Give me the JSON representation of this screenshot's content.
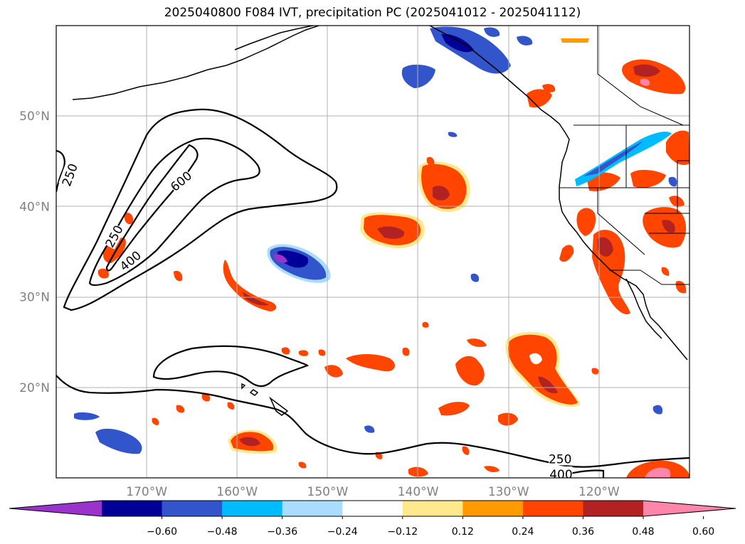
{
  "title": "2025040800 F084 IVT, precipitation PC (2025041012 - 2025041112)",
  "map": {
    "lon_range": [
      -180,
      -110
    ],
    "lat_range": [
      10,
      60
    ],
    "lat_ticks": [
      {
        "value": 20,
        "label": "20°N"
      },
      {
        "value": 30,
        "label": "30°N"
      },
      {
        "value": 40,
        "label": "40°N"
      },
      {
        "value": 50,
        "label": "50°N"
      }
    ],
    "lon_ticks": [
      {
        "value": -170,
        "label": "170°W"
      },
      {
        "value": -160,
        "label": "160°W"
      },
      {
        "value": -150,
        "label": "150°W"
      },
      {
        "value": -140,
        "label": "140°W"
      },
      {
        "value": -130,
        "label": "130°W"
      },
      {
        "value": -120,
        "label": "120°W"
      }
    ],
    "grid": true
  },
  "ivt_contours": {
    "levels": [
      250,
      400,
      600
    ],
    "labels": [
      {
        "text": "250",
        "lon": -178.5,
        "lat": 43.5,
        "rot": -70
      },
      {
        "text": "250",
        "lon": -173.6,
        "lat": 36.7,
        "rot": -62
      },
      {
        "text": "400",
        "lon": -171.8,
        "lat": 34.0,
        "rot": -40
      },
      {
        "text": "600",
        "lon": -166.2,
        "lat": 42.8,
        "rot": -40
      },
      {
        "text": "250",
        "lon": -124.3,
        "lat": 12.1,
        "rot": 0
      },
      {
        "text": "400",
        "lon": -124.2,
        "lat": 10.4,
        "rot": 0
      }
    ]
  },
  "colorbar": {
    "colors": [
      "#9933cc",
      "#000099",
      "#3355cc",
      "#00bbff",
      "#aaddff",
      "#ffffff",
      "#ffe98c",
      "#ff9a00",
      "#ff4500",
      "#b22222",
      "#ff85aa"
    ],
    "tick_labels": [
      "−0.60",
      "−0.48",
      "−0.36",
      "−0.24",
      "−0.12",
      "0.12",
      "0.24",
      "0.36",
      "0.48",
      "0.60"
    ]
  }
}
